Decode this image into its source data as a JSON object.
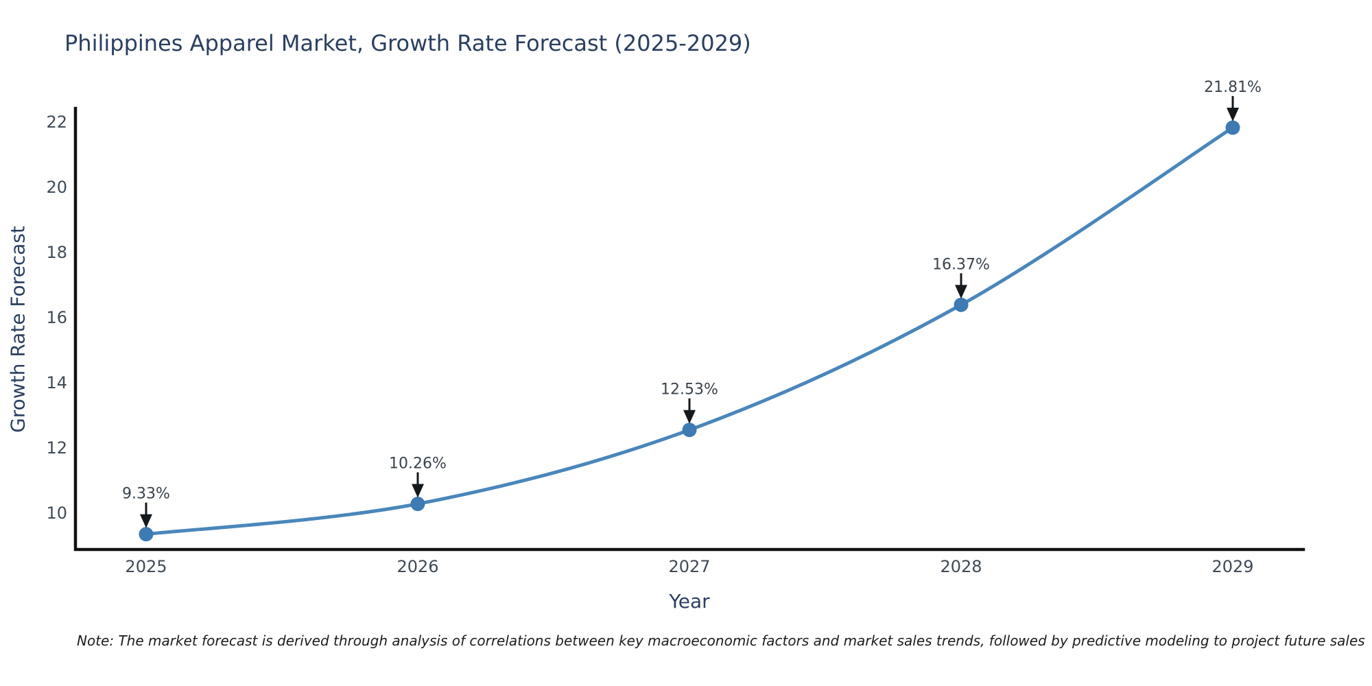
{
  "chart_data": {
    "type": "line",
    "title": "Philippines Apparel Market, Growth Rate Forecast (2025-2029)",
    "xlabel": "Year",
    "ylabel": "Growth Rate Forecast",
    "x": [
      2025,
      2026,
      2027,
      2028,
      2029
    ],
    "series": [
      {
        "name": "Growth Rate Forecast",
        "values": [
          9.33,
          10.26,
          12.53,
          16.37,
          21.81
        ]
      }
    ],
    "point_labels": [
      "9.33%",
      "10.26%",
      "12.53%",
      "16.37%",
      "21.81%"
    ],
    "yticks": [
      10,
      12,
      14,
      16,
      18,
      20,
      22
    ],
    "ylim": [
      8.86,
      22.4
    ],
    "xlim": [
      2024.74,
      2029.26
    ],
    "grid": false,
    "legend": "none",
    "line_smoothing": "spline",
    "colors": {
      "line": "#4a86bb",
      "marker": "#3e7ab3",
      "axis": "#111111",
      "arrow": "#15191c",
      "tick_text": "#3f4a57",
      "annotation_text": "#3a424b",
      "title_text": "#2a3f5f",
      "background": "#ffffff"
    },
    "note": "Note: The market forecast is derived through analysis of correlations between key macroeconomic factors and market sales trends, followed by predictive modeling to project future sales"
  }
}
